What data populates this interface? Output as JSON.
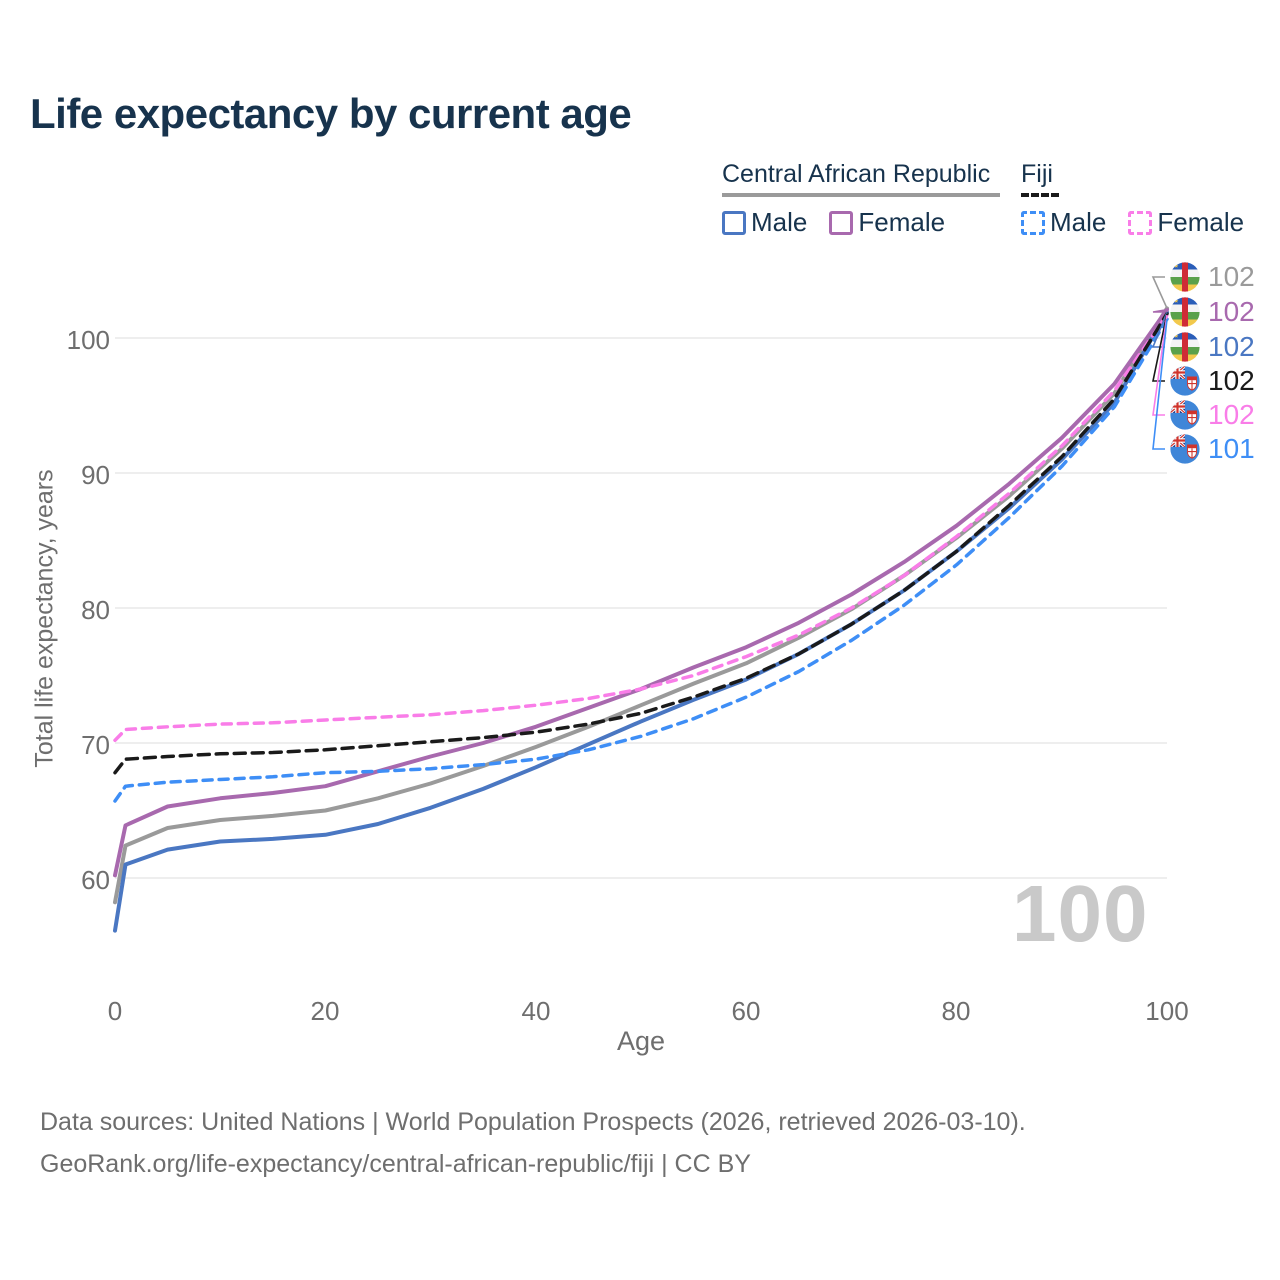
{
  "title": "Life expectancy by current age",
  "legend": {
    "groups": [
      {
        "label": "Central African Republic",
        "line_style": "solid",
        "line_color": "#9a9a9a",
        "items": [
          {
            "label": "Male",
            "color": "#4a77c2",
            "style": "solid"
          },
          {
            "label": "Female",
            "color": "#a869ae",
            "style": "solid"
          }
        ]
      },
      {
        "label": "Fiji",
        "line_style": "dashed",
        "line_color": "#1a1a1a",
        "items": [
          {
            "label": "Male",
            "color": "#3e8ef6",
            "style": "dashed"
          },
          {
            "label": "Female",
            "color": "#f97de8",
            "style": "dashed"
          }
        ]
      }
    ]
  },
  "watermark": "100",
  "endpoints": [
    {
      "flag": "car-flag",
      "value": "102",
      "color": "#9a9a9a",
      "series": "car_total"
    },
    {
      "flag": "car-flag",
      "value": "102",
      "color": "#a869ae",
      "series": "car_female"
    },
    {
      "flag": "car-flag",
      "value": "102",
      "color": "#4a77c2",
      "series": "car_male"
    },
    {
      "flag": "fiji-flag",
      "value": "102",
      "color": "#1a1a1a",
      "series": "fiji_total"
    },
    {
      "flag": "fiji-flag",
      "value": "102",
      "color": "#f97de8",
      "series": "fiji_female"
    },
    {
      "flag": "fiji-flag",
      "value": "101",
      "color": "#3e8ef6",
      "series": "fiji_male"
    }
  ],
  "chart_data": {
    "type": "line",
    "title": "Life expectancy by current age",
    "xlabel": "Age",
    "ylabel": "Total life expectancy, years",
    "xlim": [
      0,
      100
    ],
    "ylim": [
      55,
      103
    ],
    "grid": "horizontal",
    "legend_position": "top-right",
    "xtick_labels": [
      "0",
      "20",
      "40",
      "60",
      "80",
      "100"
    ],
    "ytick_labels": [
      "100",
      "90",
      "80",
      "70",
      "60"
    ],
    "xticks": [
      0,
      20,
      40,
      60,
      80,
      100
    ],
    "yticks": [
      100,
      90,
      80,
      70,
      60
    ],
    "ages": [
      0,
      1,
      5,
      10,
      15,
      20,
      25,
      30,
      35,
      40,
      45,
      50,
      55,
      60,
      65,
      70,
      75,
      80,
      85,
      90,
      95,
      100
    ],
    "series": [
      {
        "id": "car_total",
        "name": "Central African Republic — Both sexes",
        "color": "#9a9a9a",
        "style": "solid",
        "values": [
          58.2,
          62.4,
          63.7,
          64.3,
          64.6,
          65.0,
          65.9,
          67.0,
          68.3,
          69.7,
          71.2,
          72.8,
          74.4,
          75.9,
          77.8,
          79.9,
          82.4,
          85.2,
          88.3,
          91.8,
          95.9,
          102.2
        ]
      },
      {
        "id": "car_male",
        "name": "Central African Republic — Male",
        "color": "#4a77c2",
        "style": "solid",
        "values": [
          56.1,
          61.0,
          62.1,
          62.7,
          62.9,
          63.2,
          64.0,
          65.2,
          66.6,
          68.2,
          69.9,
          71.6,
          73.2,
          74.7,
          76.6,
          78.8,
          81.3,
          84.2,
          87.4,
          91.0,
          95.2,
          101.9
        ]
      },
      {
        "id": "car_female",
        "name": "Central African Republic — Female",
        "color": "#a869ae",
        "style": "solid",
        "values": [
          60.2,
          63.9,
          65.3,
          65.9,
          66.3,
          66.8,
          67.9,
          69.0,
          70.0,
          71.2,
          72.6,
          74.0,
          75.6,
          77.1,
          78.9,
          81.0,
          83.4,
          86.1,
          89.2,
          92.6,
          96.6,
          102.1
        ]
      },
      {
        "id": "fiji_male",
        "name": "Fiji — Male",
        "color": "#3e8ef6",
        "style": "dashed",
        "values": [
          65.7,
          66.8,
          67.1,
          67.3,
          67.5,
          67.8,
          67.9,
          68.1,
          68.4,
          68.8,
          69.5,
          70.5,
          71.8,
          73.4,
          75.3,
          77.6,
          80.2,
          83.2,
          86.7,
          90.5,
          94.9,
          101.4
        ]
      },
      {
        "id": "fiji_female",
        "name": "Fiji — Female",
        "color": "#f97de8",
        "style": "dashed",
        "values": [
          70.2,
          71.0,
          71.2,
          71.4,
          71.5,
          71.7,
          71.9,
          72.1,
          72.4,
          72.8,
          73.3,
          74.0,
          75.0,
          76.4,
          78.0,
          80.0,
          82.4,
          85.3,
          88.5,
          92.0,
          96.1,
          101.7
        ]
      },
      {
        "id": "fiji_total",
        "name": "Fiji — Both sexes",
        "color": "#1a1a1a",
        "style": "dashed",
        "values": [
          67.8,
          68.8,
          69.0,
          69.2,
          69.3,
          69.5,
          69.8,
          70.1,
          70.4,
          70.8,
          71.4,
          72.2,
          73.4,
          74.8,
          76.6,
          78.8,
          81.3,
          84.2,
          87.6,
          91.2,
          95.5,
          101.8
        ]
      }
    ]
  },
  "footer": {
    "line1": "Data sources: United Nations | World Population Prospects (2026, retrieved 2026-03-10).",
    "line2": "GeoRank.org/life-expectancy/central-african-republic/fiji | CC BY"
  }
}
